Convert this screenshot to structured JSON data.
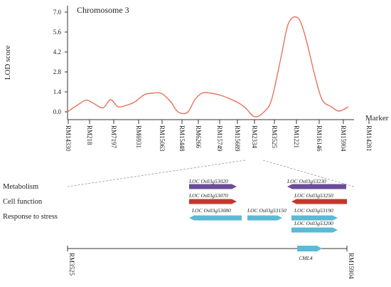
{
  "chart_data": {
    "type": "line",
    "title": "Chromosome 3",
    "ylabel": "LOD score",
    "xlabel": "Marker",
    "yticks": [
      "0.0",
      "1.4",
      "2.8",
      "4.2",
      "5.6",
      "7.0"
    ],
    "ylim": [
      -0.4,
      7.3
    ],
    "line_color": "#e8735f",
    "markers": [
      "RM14330",
      "RM218",
      "RM7197",
      "RM6931",
      "RM15063",
      "RM15448",
      "RM6266",
      "RM15749",
      "RM15689",
      "RM2334",
      "RM3525",
      "RM1221",
      "RM16146",
      "RM15904",
      "RM14281"
    ],
    "lod_curve": {
      "x": [
        0,
        0.05,
        0.1,
        0.14,
        0.19,
        0.23,
        0.27,
        0.32,
        0.36,
        0.41,
        0.45,
        0.5,
        0.55,
        0.59,
        0.64,
        0.68,
        0.72,
        0.77,
        0.82,
        0.86,
        0.91,
        0.95,
        1.0,
        1.05,
        1.09,
        1.14,
        1.18,
        1.23,
        1.27,
        1.32,
        1.36,
        1.41,
        1.45,
        1.5
      ],
      "y": [
        0.0,
        0.45,
        0.82,
        0.58,
        0.28,
        0.85,
        0.35,
        0.48,
        0.7,
        1.2,
        1.3,
        1.3,
        0.72,
        0.0,
        -0.05,
        0.85,
        1.32,
        1.3,
        1.15,
        0.95,
        0.65,
        0.28,
        -0.35,
        0.0,
        0.85,
        3.8,
        6.2,
        6.6,
        5.3,
        2.6,
        0.85,
        0.35,
        0.05,
        0.35
      ]
    }
  },
  "detail": {
    "start_marker": "RM3525",
    "end_marker": "RM15904",
    "categories": [
      "Metabolism",
      "Cell function",
      "Response to stress"
    ],
    "category_colors": {
      "Metabolism": "#6b4c9a",
      "Cell function": "#c0392b",
      "Response to stress": "#5bbad5"
    },
    "gene_prefix": "LOC",
    "genes": [
      {
        "name": "Os03g53020",
        "category": "Metabolism",
        "direction": "right"
      },
      {
        "name": "Os03g53230",
        "category": "Metabolism",
        "direction": "left"
      },
      {
        "name": "Os03g53070",
        "category": "Cell function",
        "direction": "right"
      },
      {
        "name": "Os03g53250",
        "category": "Cell function",
        "direction": "left"
      },
      {
        "name": "Os03g53080",
        "category": "Response to stress",
        "direction": "left"
      },
      {
        "name": "Os03g53150",
        "category": "Response to stress",
        "direction": "right"
      },
      {
        "name": "Os03g53190",
        "category": "Response to stress",
        "direction": "right"
      },
      {
        "name": "Os03g53200",
        "category": "Response to stress",
        "direction": "right"
      }
    ],
    "cml_label": "CML4"
  }
}
